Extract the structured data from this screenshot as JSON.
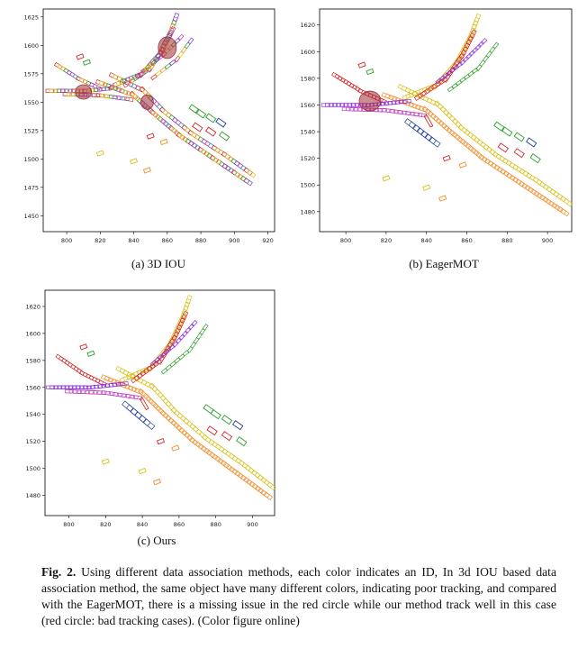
{
  "panels": [
    {
      "id": "a",
      "label": "(a) 3D IOU",
      "x_ticks": [
        "800",
        "820",
        "840",
        "860",
        "880",
        "900",
        "920"
      ],
      "y_ticks": [
        "1625",
        "1600",
        "1575",
        "1550",
        "1525",
        "1500",
        "1475",
        "1450"
      ],
      "xlim": [
        786,
        924
      ],
      "ylim": [
        1436,
        1632
      ]
    },
    {
      "id": "b",
      "label": "(b) EagerMOT",
      "x_ticks": [
        "800",
        "820",
        "840",
        "860",
        "880",
        "900"
      ],
      "y_ticks": [
        "1620",
        "1600",
        "1580",
        "1560",
        "1540",
        "1520",
        "1500",
        "1480"
      ],
      "xlim": [
        787,
        912
      ],
      "ylim": [
        1465,
        1632
      ]
    },
    {
      "id": "c",
      "label": "(c) Ours",
      "x_ticks": [
        "800",
        "820",
        "840",
        "860",
        "880",
        "900"
      ],
      "y_ticks": [
        "1620",
        "1600",
        "1580",
        "1560",
        "1540",
        "1520",
        "1500",
        "1480"
      ],
      "xlim": [
        787,
        912
      ],
      "ylim": [
        1465,
        1632
      ]
    }
  ],
  "caption": {
    "label": "Fig. 2.",
    "text": " Using different data association methods, each color indicates an ID, In 3d IOU based data association method, the same object have many different colors, indicating poor tracking, and compared with the EagerMOT, there is a missing issue in the red circle while our method track well in this case (red circle: bad tracking cases). (Color figure online)"
  },
  "colors": {
    "red": "#d62728",
    "yellow": "#d8c21a",
    "orange": "#f28e2b",
    "green": "#2ca02c",
    "blue": "#1f3fa0",
    "purple": "#8a2be2",
    "magenta": "#c03ac0",
    "teal": "#3aa6a0",
    "circle": "#a0303a"
  }
}
